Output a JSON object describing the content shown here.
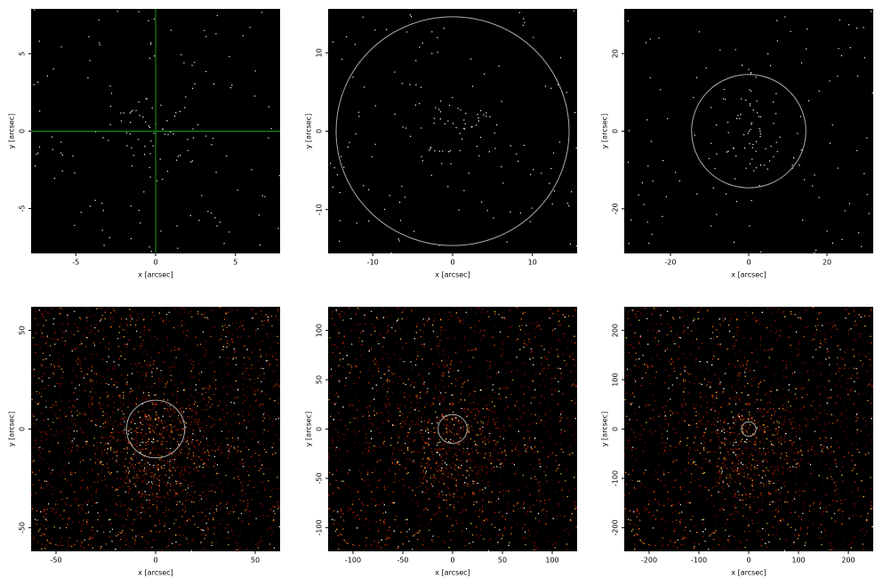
{
  "chart_data": [
    {
      "type": "image",
      "colormap": "white",
      "xlabel": "x [arcsec]",
      "ylabel": "y [arcsec]",
      "xlim": [
        -7.8,
        7.8
      ],
      "ylim": [
        -7.9,
        7.9
      ],
      "xticks": [
        -5,
        0,
        5
      ],
      "yticks": [
        -5,
        0,
        5
      ],
      "crosshair": {
        "x": 0,
        "y": 0,
        "color": "#1a9a1a"
      }
    },
    {
      "type": "image",
      "colormap": "white",
      "xlabel": "x [arcsec]",
      "ylabel": "y [arcsec]",
      "xlim": [
        -15.6,
        15.6
      ],
      "ylim": [
        -15.6,
        15.6
      ],
      "xticks": [
        -10,
        0,
        10
      ],
      "yticks": [
        -10,
        0,
        10
      ],
      "circle": {
        "x": 0,
        "y": 0,
        "r": 14.6,
        "color": "#aaaaaa"
      }
    },
    {
      "type": "image",
      "colormap": "white",
      "xlabel": "x [arcsec]",
      "ylabel": "y [arcsec]",
      "xlim": [
        -31.8,
        31.8
      ],
      "ylim": [
        -31.5,
        31.5
      ],
      "xticks": [
        -20,
        0,
        20
      ],
      "yticks": [
        -20,
        0,
        20
      ],
      "circle": {
        "x": 0,
        "y": 0,
        "r": 14.6,
        "color": "#aaaaaa"
      }
    },
    {
      "type": "image",
      "colormap": "hot",
      "xlabel": "x [arcsec]",
      "ylabel": "y [arcsec]",
      "xlim": [
        -62.5,
        62.5
      ],
      "ylim": [
        -62,
        62
      ],
      "xticks": [
        -50,
        0,
        50
      ],
      "yticks": [
        -50,
        0,
        50
      ],
      "circle": {
        "x": 0,
        "y": 0,
        "r": 14.6,
        "color": "#aaaaaa"
      }
    },
    {
      "type": "image",
      "colormap": "hot",
      "xlabel": "x [arcsec]",
      "ylabel": "y [arcsec]",
      "xlim": [
        -125,
        125
      ],
      "ylim": [
        -124,
        124
      ],
      "xticks": [
        -100,
        -50,
        0,
        50,
        100
      ],
      "yticks": [
        -100,
        -50,
        0,
        50,
        100
      ],
      "circle": {
        "x": 0,
        "y": 0,
        "r": 14.6,
        "color": "#aaaaaa"
      }
    },
    {
      "type": "image",
      "colormap": "hot",
      "xlabel": "x [arcsec]",
      "ylabel": "y [arcsec]",
      "xlim": [
        -250,
        250
      ],
      "ylim": [
        -248,
        248
      ],
      "xticks": [
        -200,
        -100,
        0,
        100,
        200
      ],
      "yticks": [
        -200,
        -100,
        0,
        100,
        200
      ],
      "circle": {
        "x": 0,
        "y": 0,
        "r": 14.6,
        "color": "#aaaaaa"
      }
    }
  ]
}
